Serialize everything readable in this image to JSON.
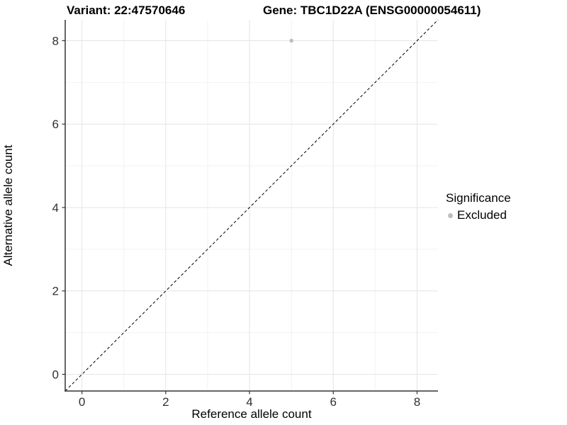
{
  "chart_data": {
    "type": "scatter",
    "title_left": "Variant: 22:47570646",
    "title_right": "Gene: TBC1D22A (ENSG00000054611)",
    "xlabel": "Reference allele count",
    "ylabel": "Alternative allele count",
    "xlim": [
      -0.4,
      8.5
    ],
    "ylim": [
      -0.4,
      8.5
    ],
    "xticks": [
      0,
      2,
      4,
      6,
      8
    ],
    "yticks": [
      0,
      2,
      4,
      6,
      8
    ],
    "minor_xticks": [
      1,
      3,
      5,
      7
    ],
    "minor_yticks": [
      1,
      3,
      5,
      7
    ],
    "grid": true,
    "identity_line": {
      "style": "dashed",
      "color": "#000000"
    },
    "series": [
      {
        "name": "Excluded",
        "color": "#bebebe",
        "points": [
          {
            "x": 5,
            "y": 8
          }
        ]
      }
    ],
    "legend": {
      "title": "Significance",
      "position": "right",
      "items": [
        {
          "label": "Excluded",
          "color": "#bebebe"
        }
      ]
    },
    "colors": {
      "major_grid": "#e4e4e4",
      "minor_grid": "#f2f2f2",
      "axis_line": "#333333",
      "tick_label": "#303030"
    }
  }
}
